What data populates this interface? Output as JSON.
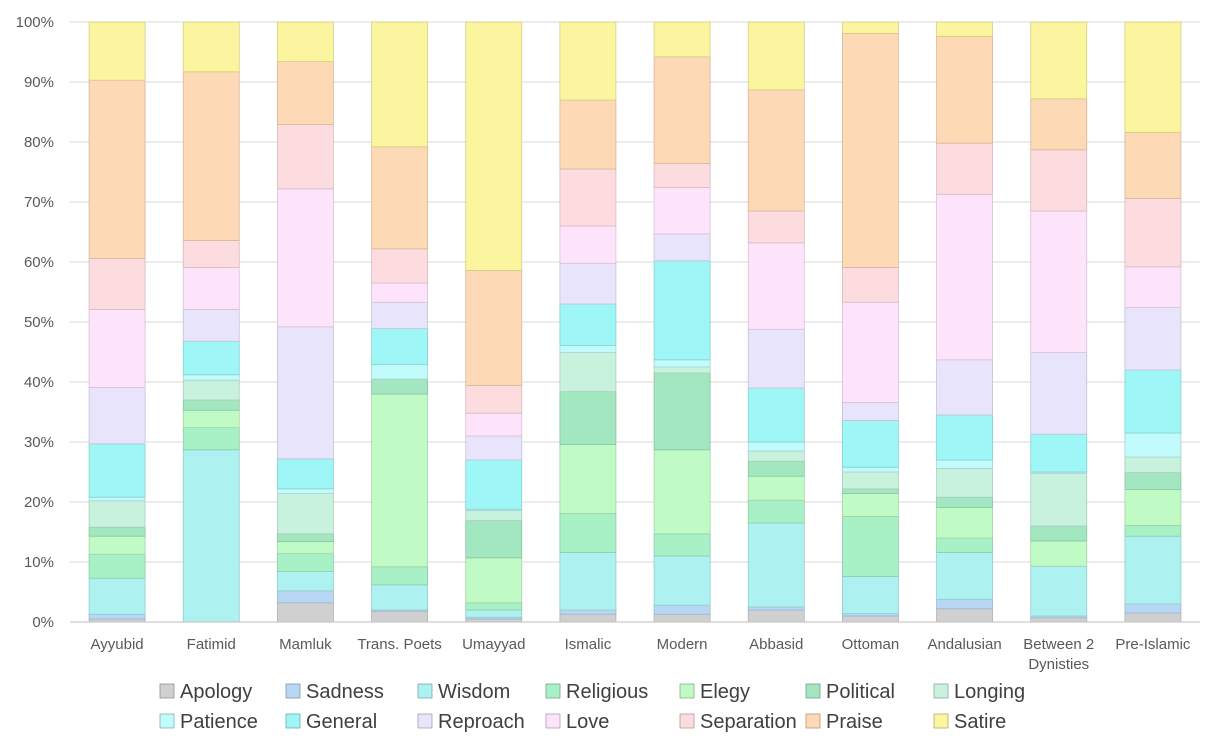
{
  "chart_data": {
    "type": "bar",
    "stacked": "percent",
    "title": "",
    "xlabel": "",
    "ylabel": "",
    "ylim": [
      0,
      100
    ],
    "yticks": [
      "0%",
      "10%",
      "20%",
      "30%",
      "40%",
      "50%",
      "60%",
      "70%",
      "80%",
      "90%",
      "100%"
    ],
    "grid": "horizontal",
    "legend_position": "bottom",
    "categories": [
      "Ayyubid",
      "Fatimid",
      "Mamluk",
      "Trans. Poets",
      "Umayyad",
      "Ismalic",
      "Modern",
      "Abbasid",
      "Ottoman",
      "Andalusian",
      "Between 2 Dynisties",
      "Pre-Islamic"
    ],
    "series": [
      {
        "name": "Apology",
        "color": "#d0d0d0",
        "values": [
          0.5,
          0,
          3.2,
          1.8,
          0.5,
          1.3,
          1.3,
          2,
          1,
          2.2,
          0.7,
          1.5
        ]
      },
      {
        "name": "Sadness",
        "color": "#b8d7f4",
        "values": [
          0.8,
          0,
          2,
          0.2,
          0.3,
          0.7,
          1.5,
          0.5,
          0.4,
          1.6,
          0.3,
          1.5
        ]
      },
      {
        "name": "Wisdom",
        "color": "#aef1f1",
        "values": [
          6,
          28.7,
          3.2,
          4.2,
          1.2,
          9.6,
          8.2,
          14,
          6.2,
          7.8,
          8.3,
          11.3
        ]
      },
      {
        "name": "Religious",
        "color": "#a8f0c6",
        "values": [
          4,
          3.7,
          3,
          3,
          1.2,
          6.5,
          3.7,
          3.8,
          10,
          2.4,
          0,
          1.8
        ]
      },
      {
        "name": "Elegy",
        "color": "#c0fbc6",
        "values": [
          3,
          2.9,
          2,
          28.8,
          7.5,
          11.5,
          14,
          4,
          3.8,
          5.1,
          4.2,
          6
        ]
      },
      {
        "name": "Political",
        "color": "#a3e7c1",
        "values": [
          1.5,
          1.7,
          1.3,
          2.5,
          6.2,
          8.8,
          12.8,
          2.5,
          0.8,
          1.7,
          2.5,
          2.8
        ]
      },
      {
        "name": "Longing",
        "color": "#c8f2de",
        "values": [
          4.4,
          3.3,
          6.7,
          0,
          1.7,
          6.5,
          1,
          1.7,
          2.8,
          4.8,
          8.8,
          2.6
        ]
      },
      {
        "name": "Patience",
        "color": "#c2fbfb",
        "values": [
          0.6,
          0.9,
          0.8,
          2.4,
          0.2,
          1.2,
          1.2,
          1.5,
          0.8,
          1.4,
          0.2,
          4
        ]
      },
      {
        "name": "General",
        "color": "#9ff6f6",
        "values": [
          8.9,
          5.6,
          5,
          6,
          8.2,
          6.9,
          16.5,
          9,
          7.8,
          7.5,
          6.3,
          10.5
        ]
      },
      {
        "name": "Reproach",
        "color": "#e8e4fb",
        "values": [
          9.4,
          5.3,
          22,
          4.4,
          4,
          6.8,
          4.5,
          9.8,
          3,
          9.2,
          13.6,
          10.4
        ]
      },
      {
        "name": "Love",
        "color": "#fde4fb",
        "values": [
          13,
          7,
          23,
          3.2,
          3.8,
          6.2,
          7.7,
          14.4,
          16.7,
          27.6,
          23.6,
          6.8
        ]
      },
      {
        "name": "Separation",
        "color": "#fcdcdf",
        "values": [
          8.5,
          4.5,
          10.7,
          5.7,
          4.6,
          9.5,
          4,
          5.3,
          5.8,
          8.5,
          10.2,
          11.4
        ]
      },
      {
        "name": "Praise",
        "color": "#fdd9b6",
        "values": [
          29.7,
          28.1,
          10.5,
          17,
          19.2,
          11.5,
          17.8,
          20.2,
          39,
          17.8,
          8.5,
          11
        ]
      },
      {
        "name": "Satire",
        "color": "#faf59e",
        "values": [
          9.7,
          8.3,
          6.6,
          20.8,
          41.4,
          13,
          5.8,
          11.3,
          1.9,
          2.4,
          12.8,
          18.4
        ]
      }
    ]
  }
}
